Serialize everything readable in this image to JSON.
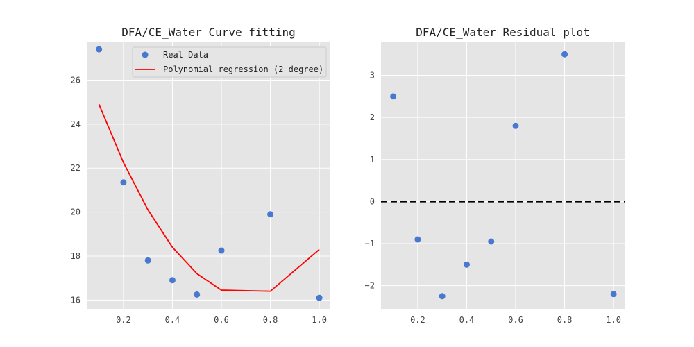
{
  "chart_data": [
    {
      "type": "scatter",
      "title": "DFA/CE_Water Curve fitting",
      "xlabel": "",
      "ylabel": "",
      "xlim": [
        0.05,
        1.045
      ],
      "ylim": [
        15.6,
        27.75
      ],
      "xticks": [
        0.2,
        0.4,
        0.6,
        0.8,
        1.0
      ],
      "xtick_labels": [
        "0.2",
        "0.4",
        "0.6",
        "0.8",
        "1.0"
      ],
      "yticks": [
        16,
        18,
        20,
        22,
        24,
        26
      ],
      "ytick_labels": [
        "16",
        "18",
        "20",
        "22",
        "24",
        "26"
      ],
      "grid": true,
      "legend": "top-right",
      "series": [
        {
          "name": "Real Data",
          "kind": "scatter",
          "color": "#4878cf",
          "x": [
            0.1,
            0.2,
            0.3,
            0.4,
            0.5,
            0.6,
            0.8,
            1.0
          ],
          "y": [
            27.4,
            21.35,
            17.8,
            16.9,
            16.25,
            18.25,
            19.9,
            16.1
          ]
        },
        {
          "name": "Polynomial regression (2 degree)",
          "kind": "line",
          "color": "#ff0000",
          "x": [
            0.1,
            0.2,
            0.3,
            0.4,
            0.5,
            0.6,
            0.8,
            1.0
          ],
          "y": [
            24.9,
            22.25,
            20.1,
            18.4,
            17.2,
            16.45,
            16.4,
            18.3
          ]
        }
      ]
    },
    {
      "type": "scatter",
      "title": "DFA/CE_Water Residual plot",
      "xlabel": "",
      "ylabel": "",
      "xlim": [
        0.05,
        1.045
      ],
      "ylim": [
        -2.55,
        3.8
      ],
      "xticks": [
        0.2,
        0.4,
        0.6,
        0.8,
        1.0
      ],
      "xtick_labels": [
        "0.2",
        "0.4",
        "0.6",
        "0.8",
        "1.0"
      ],
      "yticks": [
        -2,
        -1,
        0,
        1,
        2,
        3
      ],
      "ytick_labels": [
        "−2",
        "−1",
        "0",
        "1",
        "2",
        "3"
      ],
      "grid": true,
      "reference_line": {
        "y": 0,
        "style": "dashed",
        "color": "#000000"
      },
      "series": [
        {
          "kind": "scatter",
          "color": "#4878cf",
          "x": [
            0.1,
            0.2,
            0.3,
            0.4,
            0.5,
            0.6,
            0.8,
            1.0
          ],
          "y": [
            2.5,
            -0.9,
            -2.25,
            -1.5,
            -0.95,
            1.8,
            3.5,
            -2.2
          ]
        }
      ]
    }
  ]
}
